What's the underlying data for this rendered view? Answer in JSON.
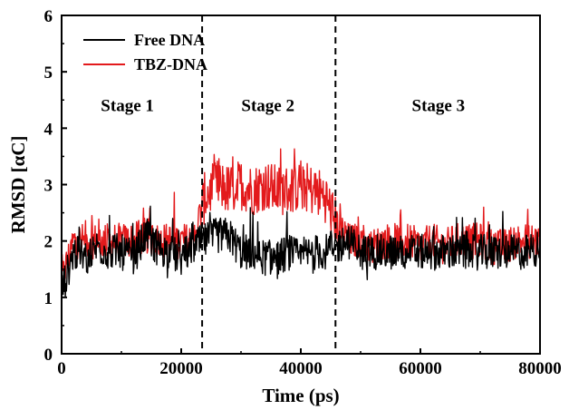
{
  "chart_data": {
    "type": "line",
    "xlabel": "Time (ps)",
    "ylabel": "RMSD [αC]",
    "xlim": [
      0,
      80000
    ],
    "ylim": [
      0,
      6
    ],
    "xticks": [
      0,
      20000,
      40000,
      60000,
      80000
    ],
    "xtick_labels": [
      "0",
      "20000",
      "40000",
      "60000",
      "80000"
    ],
    "yticks": [
      0,
      1,
      2,
      3,
      4,
      5,
      6
    ],
    "ytick_labels": [
      "0",
      "1",
      "2",
      "3",
      "4",
      "5",
      "6"
    ],
    "legend_position": "top-left",
    "grid": false,
    "series": [
      {
        "name": "Free DNA",
        "color": "#000000",
        "x": [
          0,
          2000,
          4000,
          6000,
          8000,
          10000,
          12000,
          14000,
          16000,
          18000,
          20000,
          22000,
          24000,
          26000,
          28000,
          30000,
          32000,
          34000,
          36000,
          38000,
          40000,
          42000,
          44000,
          46000,
          48000,
          50000,
          52000,
          54000,
          56000,
          58000,
          60000,
          62000,
          64000,
          66000,
          68000,
          70000,
          72000,
          74000,
          76000,
          78000,
          80000
        ],
        "y": [
          1.1,
          1.8,
          1.7,
          1.9,
          1.8,
          1.8,
          1.7,
          2.1,
          1.9,
          1.8,
          1.7,
          1.9,
          2.0,
          2.1,
          2.1,
          1.8,
          1.8,
          1.7,
          1.7,
          1.8,
          1.7,
          1.8,
          1.8,
          1.9,
          2.0,
          1.8,
          1.8,
          1.8,
          1.8,
          1.8,
          1.8,
          1.8,
          1.8,
          1.8,
          1.8,
          1.8,
          1.8,
          1.8,
          1.8,
          1.8,
          1.9
        ]
      },
      {
        "name": "TBZ-DNA",
        "color": "#e31a1c",
        "x": [
          0,
          2000,
          4000,
          6000,
          8000,
          10000,
          12000,
          14000,
          16000,
          18000,
          20000,
          22000,
          24000,
          26000,
          28000,
          30000,
          32000,
          34000,
          36000,
          38000,
          40000,
          42000,
          44000,
          46000,
          48000,
          50000,
          52000,
          54000,
          56000,
          58000,
          60000,
          62000,
          64000,
          66000,
          68000,
          70000,
          72000,
          74000,
          76000,
          78000,
          80000
        ],
        "y": [
          1.3,
          2.0,
          2.0,
          2.0,
          2.0,
          2.0,
          2.0,
          2.1,
          2.0,
          2.0,
          2.0,
          2.0,
          2.8,
          3.0,
          2.9,
          3.0,
          2.9,
          3.0,
          2.9,
          2.9,
          3.0,
          2.9,
          2.8,
          2.3,
          2.0,
          2.0,
          1.9,
          2.0,
          2.0,
          2.0,
          1.9,
          2.0,
          1.9,
          2.0,
          2.0,
          2.0,
          1.9,
          1.9,
          2.0,
          2.0,
          2.0
        ]
      }
    ],
    "annotations": [
      {
        "text": "Stage 1",
        "x": 11000,
        "y": 4.3
      },
      {
        "text": "Stage 2",
        "x": 34500,
        "y": 4.3
      },
      {
        "text": "Stage 3",
        "x": 63000,
        "y": 4.3
      }
    ],
    "vlines": [
      {
        "x": 23500,
        "style": "dashed"
      },
      {
        "x": 45800,
        "style": "dashed"
      }
    ]
  }
}
